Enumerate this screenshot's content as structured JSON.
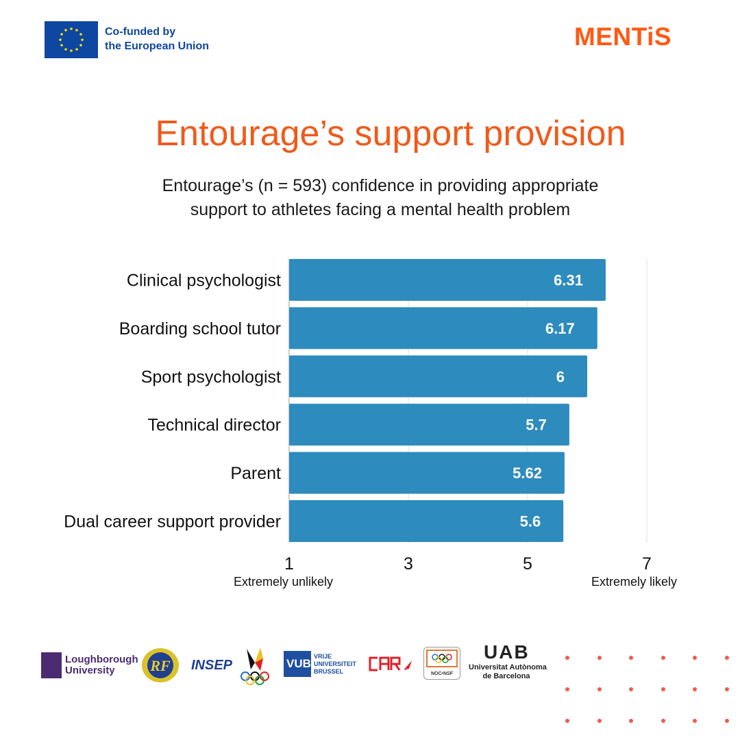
{
  "header": {
    "eu_line1": "Co-funded by",
    "eu_line2": "the European Union",
    "brand": "MENTiS"
  },
  "title": "Entourage’s support provision",
  "subtitle": "Entourage’s (n = 593) confidence in providing appropriate support to athletes facing a mental health problem",
  "colors": {
    "bar": "#2e8bbd",
    "title": "#f05a1a",
    "brand": "#ff5a14",
    "eu_blue": "#0e47a1",
    "dots": "#f05a50"
  },
  "chart_data": {
    "type": "bar",
    "orientation": "horizontal",
    "categories": [
      "Clinical psychologist",
      "Boarding school tutor",
      "Sport psychologist",
      "Technical director",
      "Parent",
      "Dual career support provider"
    ],
    "values": [
      6.31,
      6.17,
      6,
      5.7,
      5.62,
      5.6
    ],
    "value_labels": [
      "6.31",
      "6.17",
      "6",
      "5.7",
      "5.62",
      "5.6"
    ],
    "xlim": [
      1,
      7
    ],
    "xticks": [
      "1",
      "3",
      "5",
      "7"
    ],
    "xtick_values": [
      1,
      3,
      5,
      7
    ],
    "anchor_low": "Extremely unlikely",
    "anchor_high": "Extremely likely",
    "grid": "vertical"
  },
  "footer": {
    "logos": [
      "Loughborough University",
      "INSEP",
      "VUB VRIJE UNIVERSITEIT BRUSSEL",
      "NOC*NSF",
      "UAB Universitat Autònoma de Barcelona"
    ],
    "loughborough_1": "Loughborough",
    "loughborough_2": "University",
    "insep": "INSEP",
    "vub": "VUB",
    "vub_1": "VRIJE",
    "vub_2": "UNIVERSITEIT",
    "vub_3": "BRUSSEL",
    "noc": "NOC•NSF",
    "uab": "UAB",
    "uab_1": "Universitat Autònoma",
    "uab_2": "de Barcelona"
  }
}
